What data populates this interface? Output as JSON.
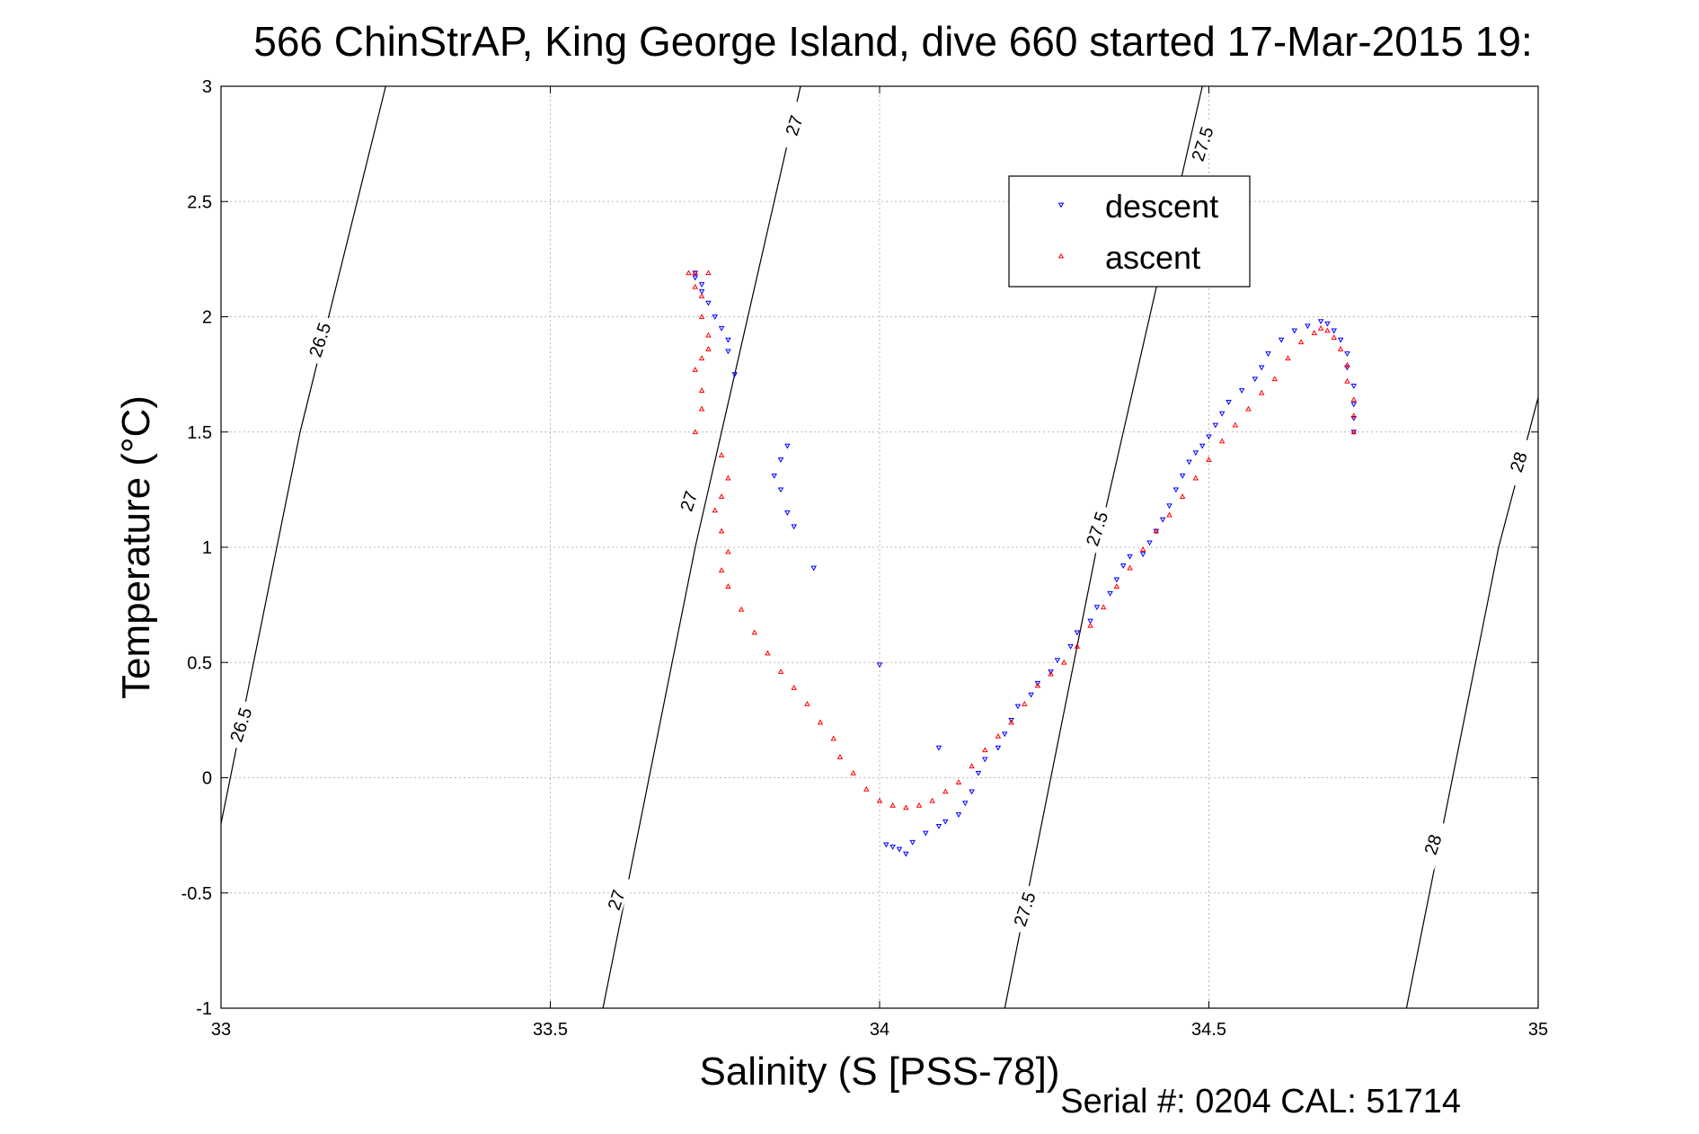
{
  "chart_data": {
    "type": "scatter",
    "title": "566 ChinStrAP, King George Island, dive 660 started 17-Mar-2015 19:",
    "xlabel": "Salinity (S [PSS-78])",
    "ylabel": "Temperature (°C)",
    "xlim": [
      33,
      35
    ],
    "ylim": [
      -1,
      3
    ],
    "xticks": [
      33,
      33.5,
      34,
      34.5,
      35
    ],
    "xtick_labels": [
      "33",
      "33.5",
      "34",
      "34.5",
      "35"
    ],
    "yticks": [
      -1,
      -0.5,
      0,
      0.5,
      1,
      1.5,
      2,
      2.5,
      3
    ],
    "ytick_labels": [
      "-1",
      "-0.5",
      "0",
      "0.5",
      "1",
      "1.5",
      "2",
      "2.5",
      "3"
    ],
    "grid": true,
    "legend_position": "top-right",
    "footer": "Serial #: 0204  CAL: 51714",
    "series": [
      {
        "name": "descent",
        "color": "#0000ff",
        "marker": "triangle-down",
        "points": [
          [
            33.72,
            2.19
          ],
          [
            33.72,
            2.17
          ],
          [
            33.73,
            2.14
          ],
          [
            33.73,
            2.11
          ],
          [
            33.74,
            2.06
          ],
          [
            33.75,
            2.0
          ],
          [
            33.76,
            1.95
          ],
          [
            33.77,
            1.9
          ],
          [
            33.77,
            1.85
          ],
          [
            33.78,
            1.75
          ],
          [
            33.86,
            1.44
          ],
          [
            33.85,
            1.38
          ],
          [
            33.84,
            1.31
          ],
          [
            33.85,
            1.25
          ],
          [
            33.86,
            1.15
          ],
          [
            33.87,
            1.09
          ],
          [
            33.9,
            0.91
          ],
          [
            34.0,
            0.49
          ],
          [
            34.09,
            0.13
          ],
          [
            34.01,
            -0.29
          ],
          [
            34.02,
            -0.3
          ],
          [
            34.03,
            -0.31
          ],
          [
            34.04,
            -0.33
          ],
          [
            34.05,
            -0.28
          ],
          [
            34.07,
            -0.24
          ],
          [
            34.09,
            -0.21
          ],
          [
            34.1,
            -0.19
          ],
          [
            34.12,
            -0.16
          ],
          [
            34.13,
            -0.11
          ],
          [
            34.14,
            -0.06
          ],
          [
            34.15,
            0.02
          ],
          [
            34.16,
            0.08
          ],
          [
            34.18,
            0.13
          ],
          [
            34.19,
            0.19
          ],
          [
            34.2,
            0.25
          ],
          [
            34.21,
            0.31
          ],
          [
            34.23,
            0.36
          ],
          [
            34.24,
            0.41
          ],
          [
            34.26,
            0.46
          ],
          [
            34.27,
            0.51
          ],
          [
            34.29,
            0.57
          ],
          [
            34.3,
            0.63
          ],
          [
            34.32,
            0.68
          ],
          [
            34.33,
            0.74
          ],
          [
            34.35,
            0.8
          ],
          [
            34.36,
            0.86
          ],
          [
            34.37,
            0.92
          ],
          [
            34.38,
            0.96
          ],
          [
            34.4,
            0.97
          ],
          [
            34.41,
            1.02
          ],
          [
            34.42,
            1.07
          ],
          [
            34.43,
            1.12
          ],
          [
            34.44,
            1.18
          ],
          [
            34.45,
            1.25
          ],
          [
            34.46,
            1.31
          ],
          [
            34.47,
            1.37
          ],
          [
            34.48,
            1.41
          ],
          [
            34.49,
            1.44
          ],
          [
            34.5,
            1.48
          ],
          [
            34.51,
            1.53
          ],
          [
            34.52,
            1.58
          ],
          [
            34.53,
            1.63
          ],
          [
            34.55,
            1.68
          ],
          [
            34.57,
            1.73
          ],
          [
            34.58,
            1.78
          ],
          [
            34.59,
            1.84
          ],
          [
            34.61,
            1.9
          ],
          [
            34.63,
            1.94
          ],
          [
            34.65,
            1.96
          ],
          [
            34.67,
            1.98
          ],
          [
            34.68,
            1.97
          ],
          [
            34.69,
            1.94
          ],
          [
            34.7,
            1.9
          ],
          [
            34.71,
            1.84
          ],
          [
            34.71,
            1.78
          ],
          [
            34.72,
            1.7
          ],
          [
            34.72,
            1.62
          ],
          [
            34.72,
            1.56
          ],
          [
            34.72,
            1.5
          ]
        ]
      },
      {
        "name": "ascent",
        "color": "#ff0000",
        "marker": "triangle-up",
        "points": [
          [
            33.71,
            2.19
          ],
          [
            33.72,
            2.19
          ],
          [
            33.74,
            2.19
          ],
          [
            33.72,
            2.13
          ],
          [
            33.73,
            2.09
          ],
          [
            33.73,
            2.0
          ],
          [
            33.74,
            1.92
          ],
          [
            33.74,
            1.86
          ],
          [
            33.73,
            1.82
          ],
          [
            33.72,
            1.77
          ],
          [
            33.73,
            1.68
          ],
          [
            33.73,
            1.6
          ],
          [
            33.72,
            1.5
          ],
          [
            33.76,
            1.4
          ],
          [
            33.77,
            1.3
          ],
          [
            33.76,
            1.22
          ],
          [
            33.75,
            1.16
          ],
          [
            33.76,
            1.07
          ],
          [
            33.77,
            0.98
          ],
          [
            33.76,
            0.9
          ],
          [
            33.77,
            0.83
          ],
          [
            33.79,
            0.73
          ],
          [
            33.81,
            0.63
          ],
          [
            33.83,
            0.54
          ],
          [
            33.85,
            0.46
          ],
          [
            33.87,
            0.39
          ],
          [
            33.89,
            0.32
          ],
          [
            33.91,
            0.24
          ],
          [
            33.93,
            0.17
          ],
          [
            33.94,
            0.09
          ],
          [
            33.96,
            0.02
          ],
          [
            33.98,
            -0.05
          ],
          [
            34.0,
            -0.1
          ],
          [
            34.02,
            -0.12
          ],
          [
            34.04,
            -0.13
          ],
          [
            34.06,
            -0.12
          ],
          [
            34.08,
            -0.1
          ],
          [
            34.1,
            -0.06
          ],
          [
            34.12,
            -0.02
          ],
          [
            34.14,
            0.05
          ],
          [
            34.16,
            0.12
          ],
          [
            34.18,
            0.18
          ],
          [
            34.2,
            0.24
          ],
          [
            34.22,
            0.32
          ],
          [
            34.24,
            0.4
          ],
          [
            34.26,
            0.45
          ],
          [
            34.28,
            0.5
          ],
          [
            34.3,
            0.57
          ],
          [
            34.32,
            0.66
          ],
          [
            34.34,
            0.74
          ],
          [
            34.36,
            0.83
          ],
          [
            34.38,
            0.91
          ],
          [
            34.4,
            0.99
          ],
          [
            34.42,
            1.07
          ],
          [
            34.44,
            1.14
          ],
          [
            34.46,
            1.22
          ],
          [
            34.48,
            1.3
          ],
          [
            34.5,
            1.38
          ],
          [
            34.52,
            1.46
          ],
          [
            34.54,
            1.53
          ],
          [
            34.56,
            1.6
          ],
          [
            34.58,
            1.67
          ],
          [
            34.6,
            1.73
          ],
          [
            34.62,
            1.82
          ],
          [
            34.64,
            1.89
          ],
          [
            34.66,
            1.93
          ],
          [
            34.67,
            1.95
          ],
          [
            34.68,
            1.94
          ],
          [
            34.69,
            1.91
          ],
          [
            34.7,
            1.86
          ],
          [
            34.71,
            1.79
          ],
          [
            34.71,
            1.72
          ],
          [
            34.72,
            1.64
          ],
          [
            34.72,
            1.57
          ],
          [
            34.72,
            1.5
          ]
        ]
      }
    ],
    "contours": [
      {
        "value": "26.5",
        "points": [
          [
            33.0,
            -0.2
          ],
          [
            33.12,
            1.5
          ],
          [
            33.25,
            3.0
          ]
        ],
        "labels": [
          {
            "x": 33.03,
            "y": 0.23,
            "angle": -72
          },
          {
            "x": 33.15,
            "y": 1.9,
            "angle": -72
          }
        ]
      },
      {
        "value": "27",
        "points": [
          [
            33.58,
            -1.0
          ],
          [
            33.72,
            1.0
          ],
          [
            33.88,
            3.0
          ]
        ],
        "labels": [
          {
            "x": 33.6,
            "y": -0.53,
            "angle": -72
          },
          {
            "x": 33.71,
            "y": 1.2,
            "angle": -72
          },
          {
            "x": 33.87,
            "y": 2.83,
            "angle": -72
          }
        ]
      },
      {
        "value": "27.5",
        "points": [
          [
            34.19,
            -1.0
          ],
          [
            34.33,
            1.0
          ],
          [
            34.49,
            3.0
          ]
        ],
        "labels": [
          {
            "x": 34.22,
            "y": -0.57,
            "angle": -72
          },
          {
            "x": 34.33,
            "y": 1.08,
            "angle": -72
          },
          {
            "x": 34.49,
            "y": 2.75,
            "angle": -72
          }
        ]
      },
      {
        "value": "28",
        "points": [
          [
            34.8,
            -1.0
          ],
          [
            34.94,
            1.0
          ],
          [
            35.0,
            1.65
          ]
        ],
        "labels": [
          {
            "x": 34.84,
            "y": -0.29,
            "angle": -72
          },
          {
            "x": 34.97,
            "y": 1.37,
            "angle": -72
          }
        ]
      }
    ]
  }
}
